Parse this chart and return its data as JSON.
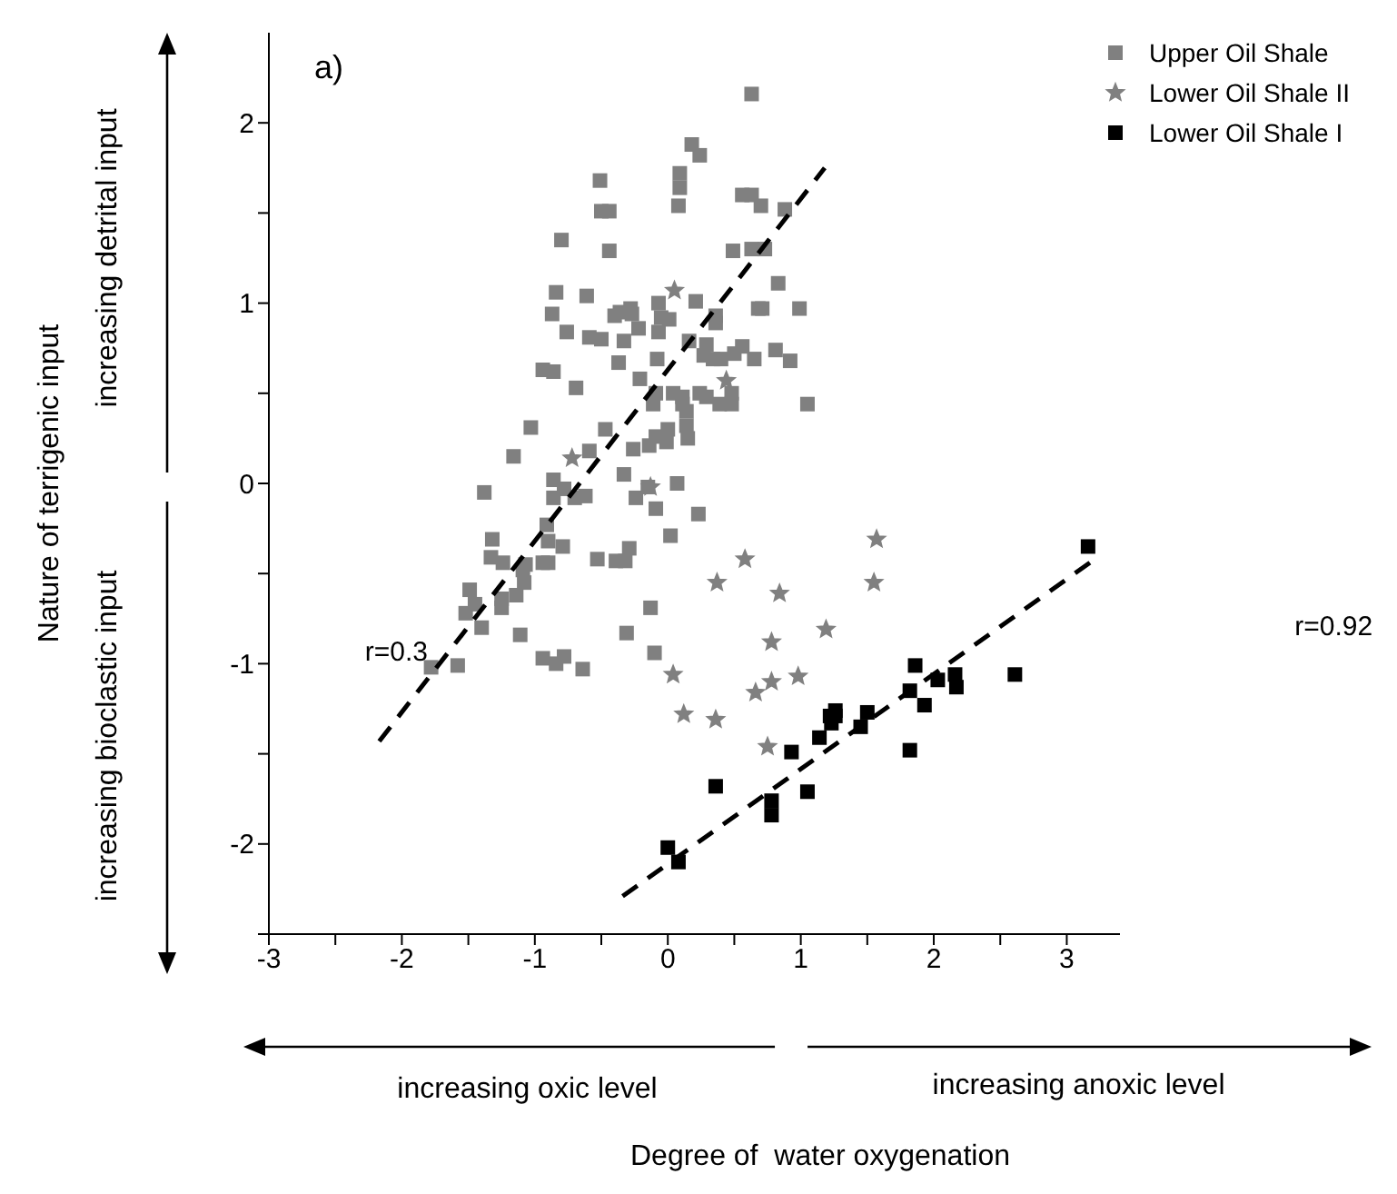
{
  "chart_data": {
    "type": "scatter",
    "title": "a)",
    "annotations": [
      "Nature of terrigenic input",
      "increasing detrital input",
      "increasing bioclastic input",
      "increasing oxic level",
      "increasing anoxic level",
      "Degree of  water oxygenation",
      "r=0.3",
      "r=0.92"
    ],
    "xlim": [
      -3,
      3.4
    ],
    "ylim": [
      -2.5,
      2.5
    ],
    "xticks": [
      -3,
      {
        "value": -2.5,
        "label": null
      },
      -2,
      {
        "value": -1.5,
        "label": null
      },
      -1,
      {
        "value": -0.5,
        "label": null
      },
      0,
      {
        "value": 0.5,
        "label": null
      },
      1,
      {
        "value": 1.5,
        "label": null
      },
      2,
      {
        "value": 2.5,
        "label": null
      },
      3
    ],
    "yticks": [
      {
        "value": -2.5,
        "label": null
      },
      -2,
      {
        "value": -1.5,
        "label": null
      },
      -1,
      {
        "value": -0.5,
        "label": null
      },
      0,
      {
        "value": 0.5,
        "label": null
      },
      1,
      {
        "value": 1.5,
        "label": null
      },
      2
    ],
    "legend": "top right",
    "series": [
      {
        "name": "Upper Oil Shale",
        "color": "#808080",
        "marker": "square",
        "x": [
          0.63,
          0.18,
          0.24,
          0.09,
          0.09,
          0.08,
          -0.51,
          -0.5,
          -0.44,
          -0.44,
          -0.8,
          0.56,
          0.63,
          0.7,
          0.88,
          0.49,
          0.63,
          0.73,
          0.83,
          0.99,
          0.68,
          0.71,
          0.21,
          0.36,
          0.36,
          -0.07,
          -0.05,
          0.01,
          -0.07,
          0.16,
          0.29,
          0.27,
          0.34,
          0.4,
          0.5,
          0.56,
          0.65,
          0.81,
          0.92,
          1.05,
          0.48,
          0.48,
          0.39,
          0.24,
          0.29,
          0.04,
          0.11,
          0.11,
          0.14,
          0.14,
          0.15,
          0,
          -0.09,
          -0.14,
          -0.01,
          -0.26,
          -0.11,
          -0.09,
          -0.08,
          -0.21,
          -0.37,
          -0.33,
          -0.22,
          -0.4,
          -0.36,
          -0.28,
          -0.27,
          -0.61,
          -0.84,
          -0.87,
          -0.76,
          -0.59,
          -0.5,
          -0.69,
          -0.94,
          -0.86,
          -1.03,
          -1.16,
          -0.59,
          -0.47,
          -1.38,
          -0.86,
          -0.86,
          -0.78,
          -0.7,
          -0.62,
          -0.33,
          -0.24,
          -0.15,
          -0.09,
          0.07,
          0.23,
          0.02,
          -0.29,
          -0.32,
          -0.39,
          -0.53,
          -0.79,
          -0.9,
          -0.91,
          -0.9,
          -0.94,
          -1.07,
          -1.09,
          -1.08,
          -1.24,
          -1.32,
          -1.33,
          -1.25,
          -1.25,
          -1.14,
          -1.11,
          -1.49,
          -1.45,
          -1.52,
          -1.4,
          -1.78,
          -1.58,
          -0.94,
          -0.84,
          -0.78,
          -0.64,
          -0.31,
          -0.13,
          -0.1
        ],
        "values": [
          2.16,
          1.88,
          1.82,
          1.72,
          1.64,
          1.54,
          1.68,
          1.51,
          1.51,
          1.29,
          1.35,
          1.6,
          1.6,
          1.54,
          1.52,
          1.29,
          1.3,
          1.3,
          1.11,
          0.97,
          0.97,
          0.97,
          1.01,
          0.93,
          0.89,
          1,
          0.92,
          0.91,
          0.84,
          0.79,
          0.77,
          0.71,
          0.69,
          0.69,
          0.72,
          0.76,
          0.69,
          0.74,
          0.68,
          0.44,
          0.5,
          0.44,
          0.44,
          0.5,
          0.48,
          0.5,
          0.48,
          0.44,
          0.4,
          0.32,
          0.25,
          0.3,
          0.26,
          0.21,
          0.23,
          0.19,
          0.44,
          0.5,
          0.69,
          0.58,
          0.67,
          0.79,
          0.86,
          0.93,
          0.95,
          0.97,
          0.94,
          1.04,
          1.06,
          0.94,
          0.84,
          0.81,
          0.8,
          0.53,
          0.63,
          0.62,
          0.31,
          0.15,
          0.18,
          0.3,
          -0.05,
          0.02,
          -0.08,
          -0.03,
          -0.08,
          -0.07,
          0.05,
          -0.08,
          -0.02,
          -0.14,
          0,
          -0.17,
          -0.29,
          -0.36,
          -0.43,
          -0.43,
          -0.42,
          -0.35,
          -0.32,
          -0.23,
          -0.44,
          -0.44,
          -0.45,
          -0.48,
          -0.55,
          -0.44,
          -0.31,
          -0.41,
          -0.64,
          -0.69,
          -0.62,
          -0.84,
          -0.59,
          -0.67,
          -0.72,
          -0.8,
          -1.02,
          -1.01,
          -0.97,
          -1,
          -0.96,
          -1.03,
          -0.83,
          -0.69,
          -0.94
        ]
      },
      {
        "name": "Lower Oil Shale II",
        "color": "#808080",
        "marker": "star",
        "x": [
          0.05,
          0.44,
          -0.72,
          -0.13,
          1.57,
          0.58,
          0.37,
          1.55,
          0.84,
          1.19,
          0.78,
          0.04,
          0.98,
          0.78,
          0.66,
          0.12,
          0.36,
          0.75
        ],
        "values": [
          1.07,
          0.57,
          0.14,
          -0.02,
          -0.31,
          -0.42,
          -0.55,
          -0.55,
          -0.61,
          -0.81,
          -0.88,
          -1.06,
          -1.07,
          -1.1,
          -1.16,
          -1.28,
          -1.31,
          -1.46
        ]
      },
      {
        "name": "Lower Oil Shale I",
        "color": "#000000",
        "marker": "square",
        "x": [
          3.16,
          0,
          0.08,
          0.36,
          0.78,
          0.78,
          0.93,
          1.05,
          1.14,
          1.22,
          1.23,
          1.26,
          1.26,
          1.45,
          1.5,
          1.82,
          1.82,
          1.86,
          1.93,
          2.03,
          2.16,
          2.17,
          2.61
        ],
        "values": [
          -0.35,
          -2.02,
          -2.1,
          -1.68,
          -1.76,
          -1.84,
          -1.49,
          -1.71,
          -1.41,
          -1.29,
          -1.33,
          -1.26,
          -1.29,
          -1.35,
          -1.27,
          -1.48,
          -1.15,
          -1.01,
          -1.23,
          -1.09,
          -1.06,
          -1.13,
          -1.06
        ]
      },
      {
        "type": "line",
        "color": "#000000",
        "line_style": "dashed",
        "marker": "none",
        "x": [
          -2.17,
          1.18
        ],
        "values": [
          -1.43,
          1.75
        ]
      },
      {
        "type": "line",
        "color": "#000000",
        "line_style": "dashed",
        "marker": "none",
        "x": [
          -0.34,
          3.23
        ],
        "values": [
          -2.29,
          -0.41
        ]
      }
    ]
  }
}
